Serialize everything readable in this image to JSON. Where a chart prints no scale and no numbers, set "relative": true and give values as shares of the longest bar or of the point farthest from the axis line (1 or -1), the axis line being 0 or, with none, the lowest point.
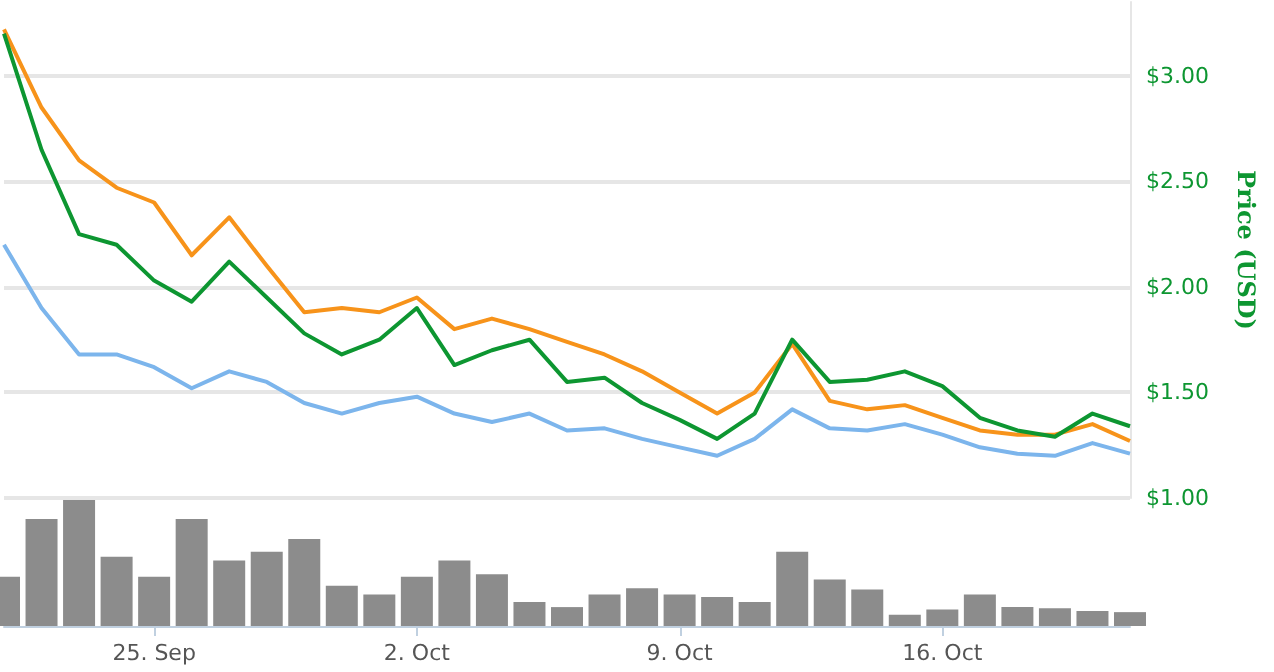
{
  "chart_data": [
    {
      "type": "line",
      "ylabel": "Price (USD)",
      "x": [
        "--09-21",
        "--09-22",
        "--09-23",
        "--09-24",
        "--09-25",
        "--09-26",
        "--09-27",
        "--09-28",
        "--09-29",
        "--09-30",
        "--10-01",
        "--10-02",
        "--10-03",
        "--10-04",
        "--10-05",
        "--10-06",
        "--10-07",
        "--10-08",
        "--10-09",
        "--10-10",
        "--10-11",
        "--10-12",
        "--10-13",
        "--10-14",
        "--10-15",
        "--10-16",
        "--10-17",
        "--10-18",
        "--10-19",
        "--10-20",
        "--10-21"
      ],
      "series": [
        {
          "color": "#7cb5ec",
          "values": [
            2.2,
            1.9,
            1.68,
            1.68,
            1.62,
            1.52,
            1.6,
            1.55,
            1.45,
            1.4,
            1.45,
            1.48,
            1.4,
            1.36,
            1.4,
            1.32,
            1.33,
            1.28,
            1.24,
            1.2,
            1.28,
            1.42,
            1.33,
            1.32,
            1.35,
            1.3,
            1.24,
            1.21,
            1.2,
            1.26,
            1.21
          ]
        },
        {
          "color": "#f7931a",
          "values": [
            3.22,
            2.85,
            2.6,
            2.47,
            2.4,
            2.15,
            2.33,
            2.1,
            1.88,
            1.9,
            1.88,
            1.95,
            1.8,
            1.85,
            1.8,
            1.74,
            1.68,
            1.6,
            1.5,
            1.4,
            1.5,
            1.73,
            1.46,
            1.42,
            1.44,
            1.38,
            1.32,
            1.3,
            1.3,
            1.35,
            1.27
          ]
        },
        {
          "color": "#0d9631",
          "values": [
            3.2,
            2.65,
            2.25,
            2.2,
            2.03,
            1.93,
            2.12,
            1.95,
            1.78,
            1.68,
            1.75,
            1.9,
            1.63,
            1.7,
            1.75,
            1.55,
            1.57,
            1.45,
            1.37,
            1.28,
            1.4,
            1.75,
            1.55,
            1.56,
            1.6,
            1.53,
            1.38,
            1.32,
            1.29,
            1.4,
            1.34
          ]
        }
      ],
      "xlim": [
        "--09-21",
        "--10-21"
      ],
      "ylim": [
        1,
        3.35
      ],
      "yticks": [
        {
          "value": 1,
          "label": "$1.00"
        },
        {
          "value": 1.5,
          "label": "$1.50"
        },
        {
          "value": 2,
          "label": "$2.00"
        },
        {
          "value": 2.5,
          "label": "$2.50"
        },
        {
          "value": 3,
          "label": "$3.00"
        }
      ],
      "grid": "y",
      "tick_labels": "y",
      "marker": "none"
    },
    {
      "type": "bar",
      "relative": true,
      "color": "#8c8c8c",
      "x": [
        "--09-21",
        "--09-22",
        "--09-23",
        "--09-24",
        "--09-25",
        "--09-26",
        "--09-27",
        "--09-28",
        "--09-29",
        "--09-30",
        "--10-01",
        "--10-02",
        "--10-03",
        "--10-04",
        "--10-05",
        "--10-06",
        "--10-07",
        "--10-08",
        "--10-09",
        "--10-10",
        "--10-11",
        "--10-12",
        "--10-13",
        "--10-14",
        "--10-15",
        "--10-16",
        "--10-17",
        "--10-18",
        "--10-19",
        "--10-20",
        "--10-21"
      ],
      "values": [
        0.39,
        0.85,
        1,
        0.55,
        0.39,
        0.85,
        0.52,
        0.59,
        0.69,
        0.32,
        0.25,
        0.39,
        0.52,
        0.41,
        0.19,
        0.15,
        0.25,
        0.3,
        0.25,
        0.23,
        0.19,
        0.59,
        0.37,
        0.29,
        0.09,
        0.13,
        0.25,
        0.15,
        0.14,
        0.12,
        0.11
      ],
      "xlim": [
        "--09-21",
        "--10-21"
      ],
      "xticks": [
        {
          "value": "--09-25",
          "label": "25. Sep"
        },
        {
          "value": "--10-02",
          "label": "2. Oct"
        },
        {
          "value": "--10-09",
          "label": "9. Oct"
        },
        {
          "value": "--10-16",
          "label": "16. Oct"
        }
      ],
      "tick_labels": "x"
    }
  ]
}
